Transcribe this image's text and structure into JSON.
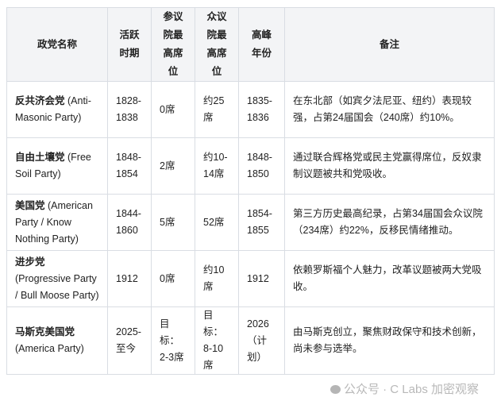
{
  "table": {
    "headers": [
      "政党名称",
      "活跃时期",
      "参议院最高席位",
      "众议院最高席位",
      "高峰年份",
      "备注"
    ],
    "rows": [
      {
        "name_cn": "反共济会党",
        "name_en": "(Anti-Masonic Party)",
        "period": "1828-1838",
        "senate": "0席",
        "house": "约25席",
        "peak": "1835-1836",
        "note": "在东北部（如宾夕法尼亚、纽约）表现较强，占第24届国会（240席）约10%。"
      },
      {
        "name_cn": "自由土壤党",
        "name_en": "(Free Soil Party)",
        "period": "1848-1854",
        "senate": "2席",
        "house": "约10-14席",
        "peak": "1848-1850",
        "note": "通过联合辉格党或民主党赢得席位，反奴隶制议题被共和党吸收。"
      },
      {
        "name_cn": "美国党",
        "name_en": "(American Party / Know Nothing Party)",
        "period": "1844-1860",
        "senate": "5席",
        "house": "52席",
        "peak": "1854-1855",
        "note": "第三方历史最高纪录，占第34届国会众议院（234席）约22%，反移民情绪推动。"
      },
      {
        "name_cn": "进步党",
        "name_en": "(Progressive Party / Bull Moose Party)",
        "period": "1912",
        "senate": "0席",
        "house": "约10席",
        "peak": "1912",
        "note": "依赖罗斯福个人魅力，改革议题被两大党吸收。"
      },
      {
        "name_cn": "马斯克美国党",
        "name_en": "(America Party)",
        "period": "2025-至今",
        "senate": "目标：2-3席",
        "house": "目标：8-10席",
        "peak": "2026（计划）",
        "note": "由马斯克创立，聚焦财政保守和技术创新，尚未参与选举。"
      }
    ]
  },
  "watermark": "公众号 · C Labs 加密观察"
}
